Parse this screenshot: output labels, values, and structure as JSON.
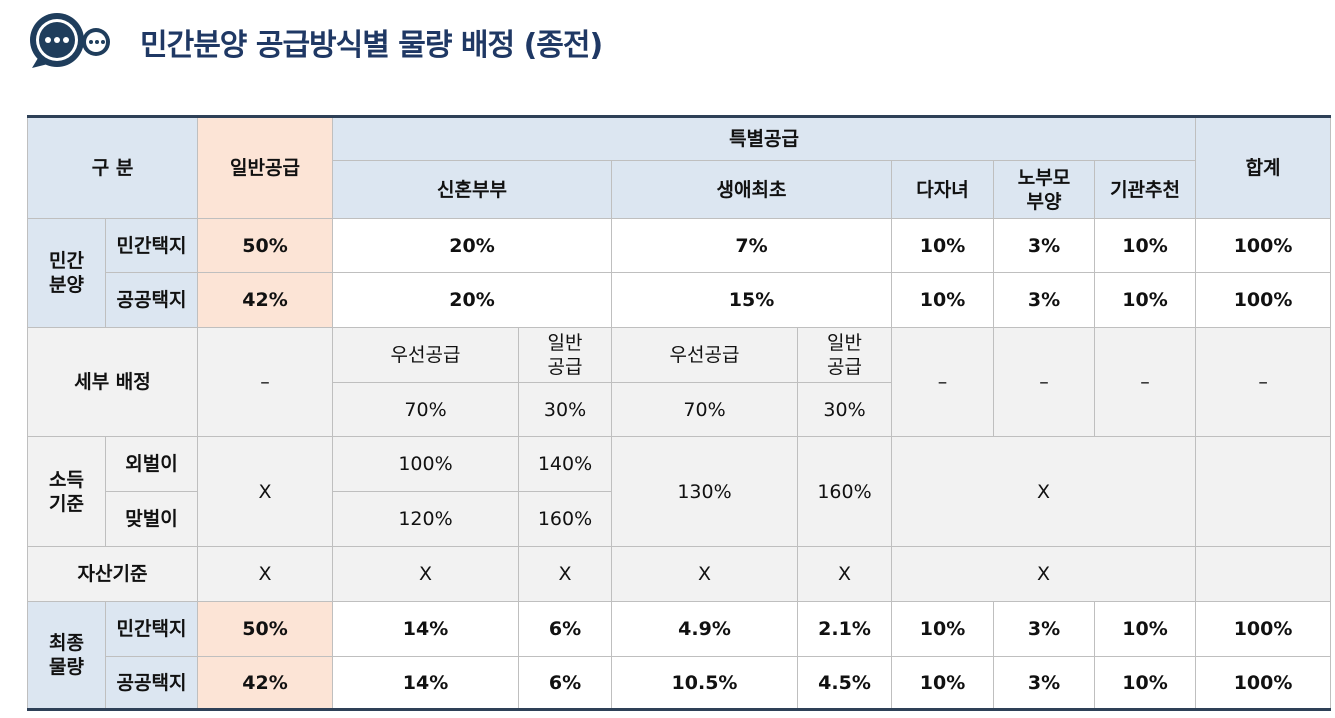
{
  "header": {
    "title": "민간분양 공급방식별 물량 배정 (종전)"
  },
  "table": {
    "rows": [
      [
        "구 분",
        "일반공급",
        "특별공급",
        "합계"
      ],
      [
        "신혼부부",
        "생애최초",
        "다자녀",
        "노부모\n부양",
        "기관추천"
      ],
      [
        "민간\n분양",
        "민간택지",
        "50%",
        "20%",
        "7%",
        "10%",
        "3%",
        "10%",
        "100%"
      ],
      [
        "공공택지",
        "42%",
        "20%",
        "15%",
        "10%",
        "3%",
        "10%",
        "100%"
      ],
      [
        "세부 배정",
        "–",
        "우선공급",
        "일반\n공급",
        "우선공급",
        "일반\n공급",
        "–",
        "–",
        "–",
        "–"
      ],
      [
        "70%",
        "30%",
        "70%",
        "30%"
      ],
      [
        "소득\n기준",
        "외벌이",
        "X",
        "100%",
        "140%",
        "130%",
        "160%",
        "X"
      ],
      [
        "맞벌이",
        "120%",
        "160%"
      ],
      [
        "자산기준",
        "X",
        "X",
        "X",
        "X",
        "X",
        "X"
      ],
      [
        "최종\n물량",
        "민간택지",
        "50%",
        "14%",
        "6%",
        "4.9%",
        "2.1%",
        "10%",
        "3%",
        "10%",
        "100%"
      ],
      [
        "공공택지",
        "42%",
        "14%",
        "6%",
        "10.5%",
        "4.5%",
        "10%",
        "3%",
        "10%",
        "100%"
      ]
    ]
  }
}
